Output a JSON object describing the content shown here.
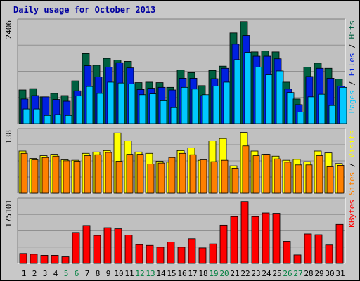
{
  "title": "Daily usage for October 2013",
  "colors": {
    "background": "#c8c8c8",
    "panel": "#c0c0c0",
    "title": "#0000a0",
    "hits": "#00c8ff",
    "files": "#0020e0",
    "pages": "#006040",
    "visits": "#ffff00",
    "sites": "#ff8000",
    "kbytes": "#ff0000",
    "weekend": "#008040",
    "weekday": "#000000"
  },
  "panels": {
    "top": {
      "max_label": "2406",
      "legend": [
        {
          "text": "Pages",
          "color": "#00c8ff"
        },
        {
          "text": " / ",
          "color": "#000000"
        },
        {
          "text": "Files",
          "color": "#0020e0"
        },
        {
          "text": " / ",
          "color": "#000000"
        },
        {
          "text": "Hits",
          "color": "#006040"
        }
      ]
    },
    "middle": {
      "max_label": "138",
      "legend": [
        {
          "text": "Sites",
          "color": "#ff8000"
        },
        {
          "text": " / ",
          "color": "#000000"
        },
        {
          "text": "Visits",
          "color": "#ffff00"
        }
      ]
    },
    "bottom": {
      "max_label": "175101",
      "legend": [
        {
          "text": "KBytes",
          "color": "#ff0000"
        }
      ]
    }
  },
  "chart_data": {
    "type": "bar",
    "title": "Daily usage for October 2013",
    "categories": [
      "1",
      "2",
      "3",
      "4",
      "5",
      "6",
      "7",
      "8",
      "9",
      "10",
      "11",
      "12",
      "13",
      "14",
      "15",
      "16",
      "17",
      "18",
      "19",
      "20",
      "21",
      "22",
      "23",
      "24",
      "25",
      "26",
      "27",
      "28",
      "29",
      "30",
      "31"
    ],
    "weekend_days": [
      "5",
      "6",
      "12",
      "13",
      "19",
      "20",
      "26",
      "27"
    ],
    "subcharts": [
      {
        "name": "top",
        "ylim": [
          0,
          2406
        ],
        "series": [
          {
            "name": "Hits",
            "values": [
              780,
              810,
              620,
              700,
              650,
              990,
              1620,
              1350,
              1510,
              1470,
              1440,
              950,
              960,
              950,
              840,
              1240,
              1180,
              880,
              1230,
              1330,
              2100,
              2360,
              1660,
              1680,
              1660,
              960,
              570,
              1310,
              1400,
              1280,
              1030
            ]
          },
          {
            "name": "Files",
            "values": [
              570,
              650,
              620,
              560,
              520,
              760,
              1340,
              1080,
              1310,
              1410,
              1290,
              790,
              820,
              840,
              780,
              1050,
              1050,
              650,
              1040,
              1280,
              1840,
              2040,
              1560,
              1560,
              1500,
              800,
              440,
              1090,
              1280,
              1050,
              870
            ]
          },
          {
            "name": "Pages",
            "values": [
              340,
              340,
              190,
              210,
              190,
              640,
              860,
              700,
              960,
              940,
              920,
              670,
              690,
              530,
              370,
              840,
              800,
              670,
              870,
              960,
              1480,
              1650,
              1310,
              1130,
              1220,
              720,
              270,
              620,
              680,
              420,
              840
            ]
          }
        ]
      },
      {
        "name": "middle",
        "ylim": [
          0,
          138
        ],
        "series": [
          {
            "name": "Visits",
            "values": [
              91,
              75,
              81,
              84,
              72,
              71,
              86,
              89,
              92,
              130,
              113,
              89,
              86,
              69,
              67,
              92,
              98,
              71,
              113,
              118,
              59,
              131,
              91,
              84,
              80,
              71,
              73,
              68,
              91,
              87,
              64
            ]
          },
          {
            "name": "Sites",
            "values": [
              86,
              72,
              77,
              80,
              70,
              69,
              81,
              83,
              88,
              69,
              84,
              84,
              63,
              65,
              77,
              86,
              83,
              72,
              68,
              71,
              54,
              102,
              81,
              84,
              74,
              67,
              61,
              61,
              81,
              57,
              60
            ]
          }
        ]
      },
      {
        "name": "bottom",
        "ylim": [
          0,
          175101
        ],
        "series": [
          {
            "name": "KBytes",
            "values": [
              27000,
              25000,
              22000,
              22000,
              18000,
              84000,
              103000,
              76000,
              97000,
              94000,
              77000,
              51000,
              49000,
              44000,
              58000,
              44000,
              67000,
              42000,
              53000,
              104000,
              127000,
              168000,
              127000,
              137000,
              136000,
              60000,
              23000,
              80000,
              78000,
              50000,
              106000
            ]
          }
        ]
      }
    ]
  }
}
